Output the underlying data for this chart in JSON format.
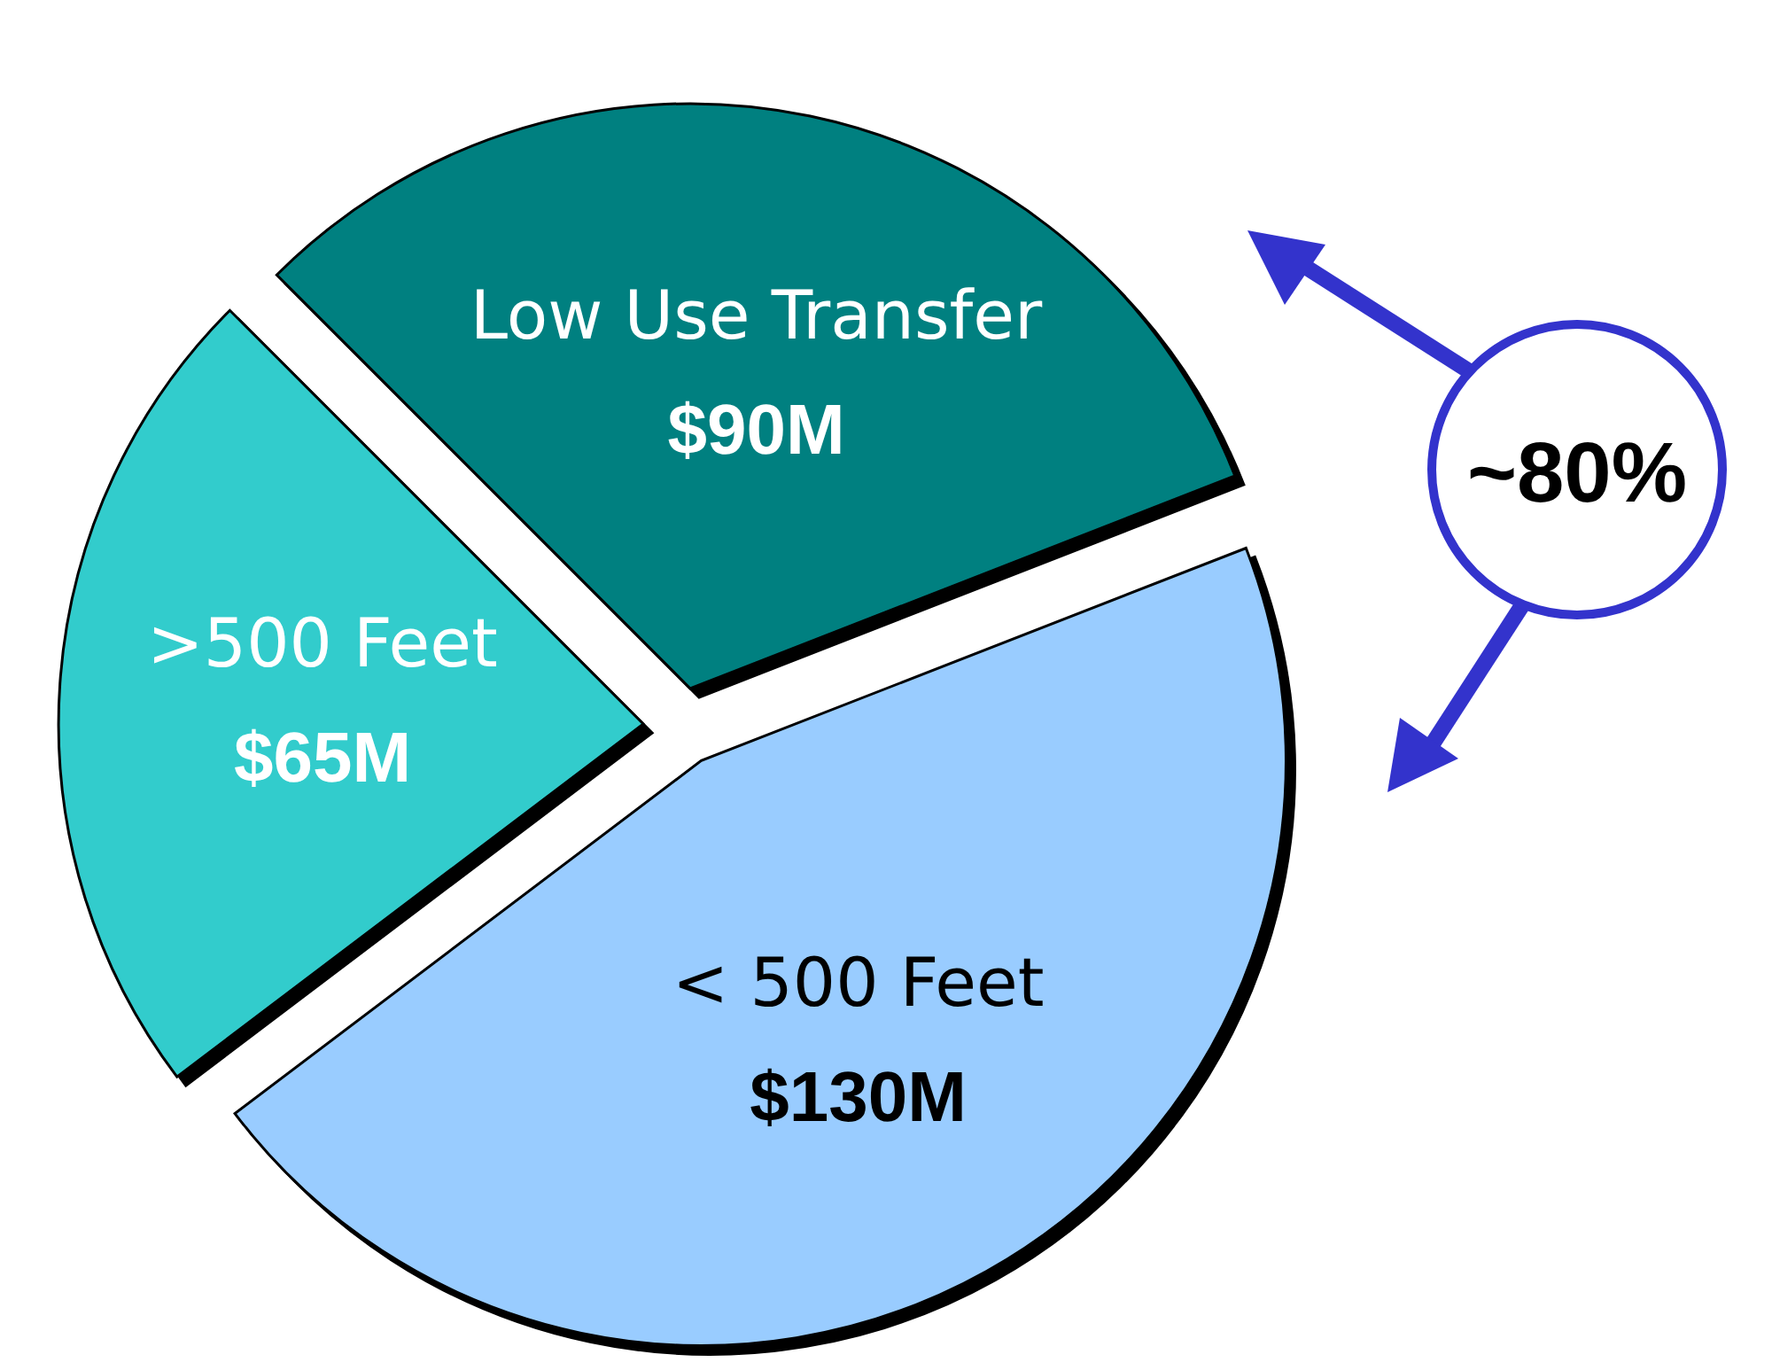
{
  "chart_data": {
    "type": "pie",
    "categories": [
      "Low Use Transfer",
      "< 500 Feet",
      ">500 Feet"
    ],
    "values": [
      90,
      130,
      65
    ],
    "colors": [
      "#008080",
      "#99ccff",
      "#33cccc"
    ],
    "value_labels": [
      "$90M",
      "$130M",
      "$65M"
    ],
    "annotations": [
      "~80%"
    ]
  }
}
